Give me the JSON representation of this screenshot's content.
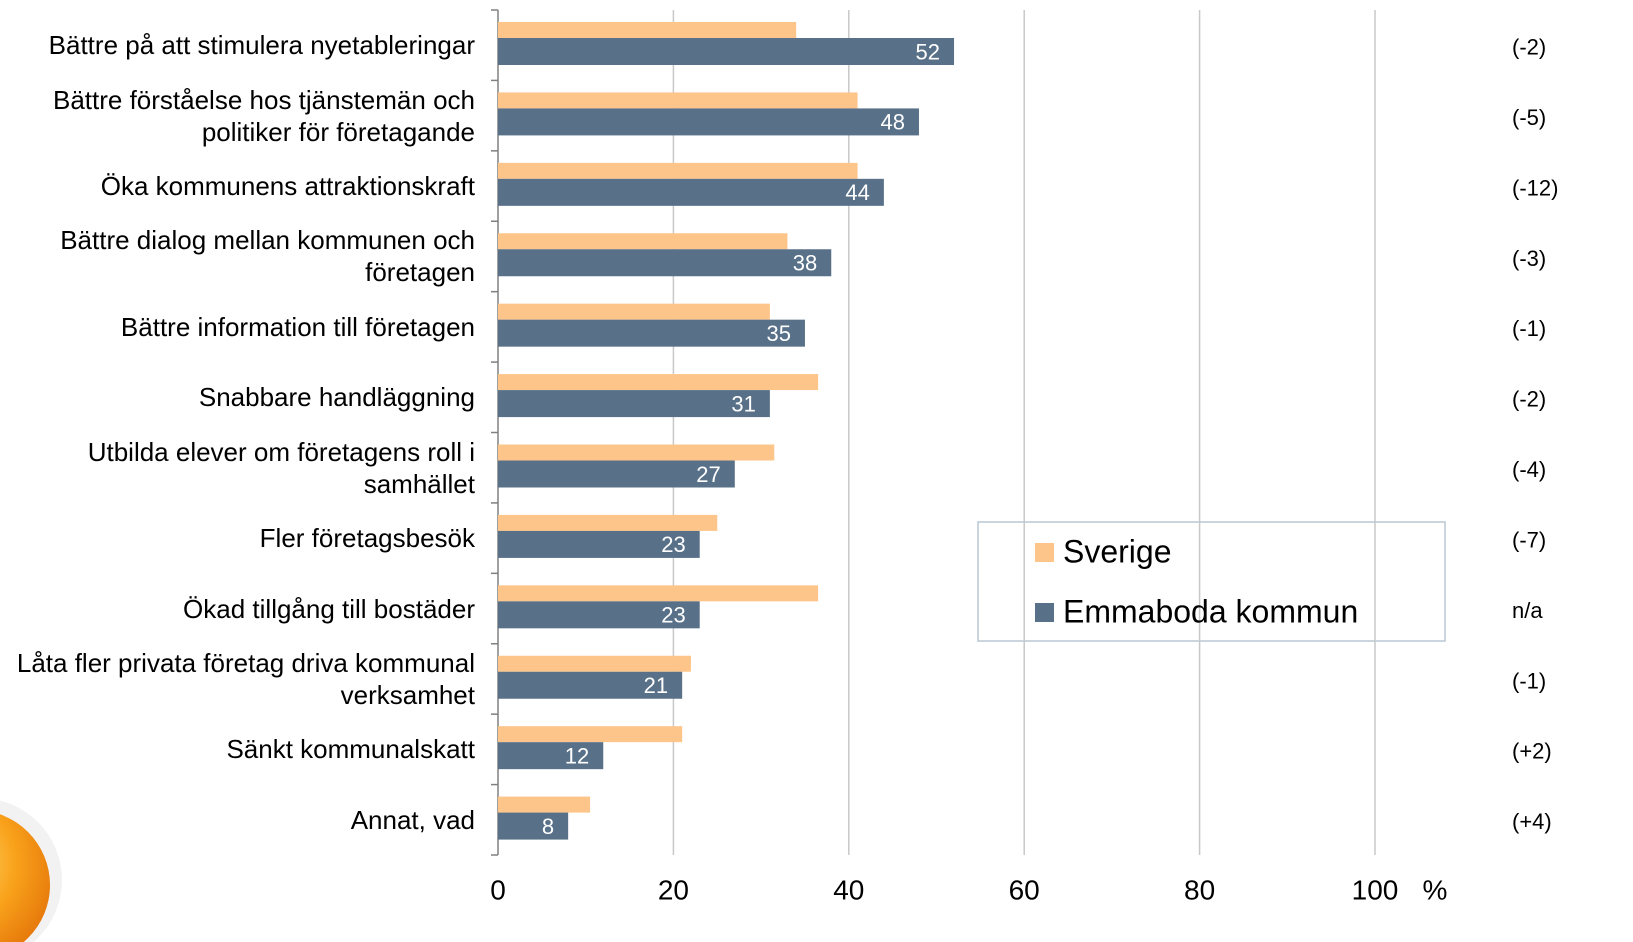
{
  "chart_data": {
    "type": "bar",
    "orientation": "horizontal",
    "categories": [
      "Bättre på att stimulera nyetableringar",
      "Bättre förståelse hos tjänstemän och politiker för företagande",
      "Öka kommunens attraktionskraft",
      "Bättre dialog mellan kommunen och företagen",
      "Bättre information till företagen",
      "Snabbare handläggning",
      "Utbilda elever om företagens roll i samhället",
      "Fler företagsbesök",
      "Ökad tillgång till bostäder",
      "Låta fler privata företag driva kommunal verksamhet",
      "Sänkt kommunalskatt",
      "Annat, vad"
    ],
    "series": [
      {
        "name": "Sverige",
        "color": "#fec58a",
        "values": [
          34,
          41,
          41,
          33,
          31,
          36.5,
          31.5,
          25,
          36.5,
          22,
          21,
          10.5
        ]
      },
      {
        "name": "Emmaboda kommun",
        "color": "#587189",
        "values": [
          52,
          48,
          44,
          38,
          35,
          31,
          27,
          23,
          23,
          21,
          12,
          8
        ],
        "show_value_labels": true
      }
    ],
    "annotations": [
      "(-2)",
      "(-5)",
      "(-12)",
      "(-3)",
      "(-1)",
      "(-2)",
      "(-4)",
      "(-7)",
      "n/a",
      "(-1)",
      "(+2)",
      "(+4)"
    ],
    "x_label": "%",
    "xlim": [
      0,
      100
    ],
    "xticks": [
      0,
      20,
      40,
      60,
      80,
      100
    ],
    "grid": true
  }
}
